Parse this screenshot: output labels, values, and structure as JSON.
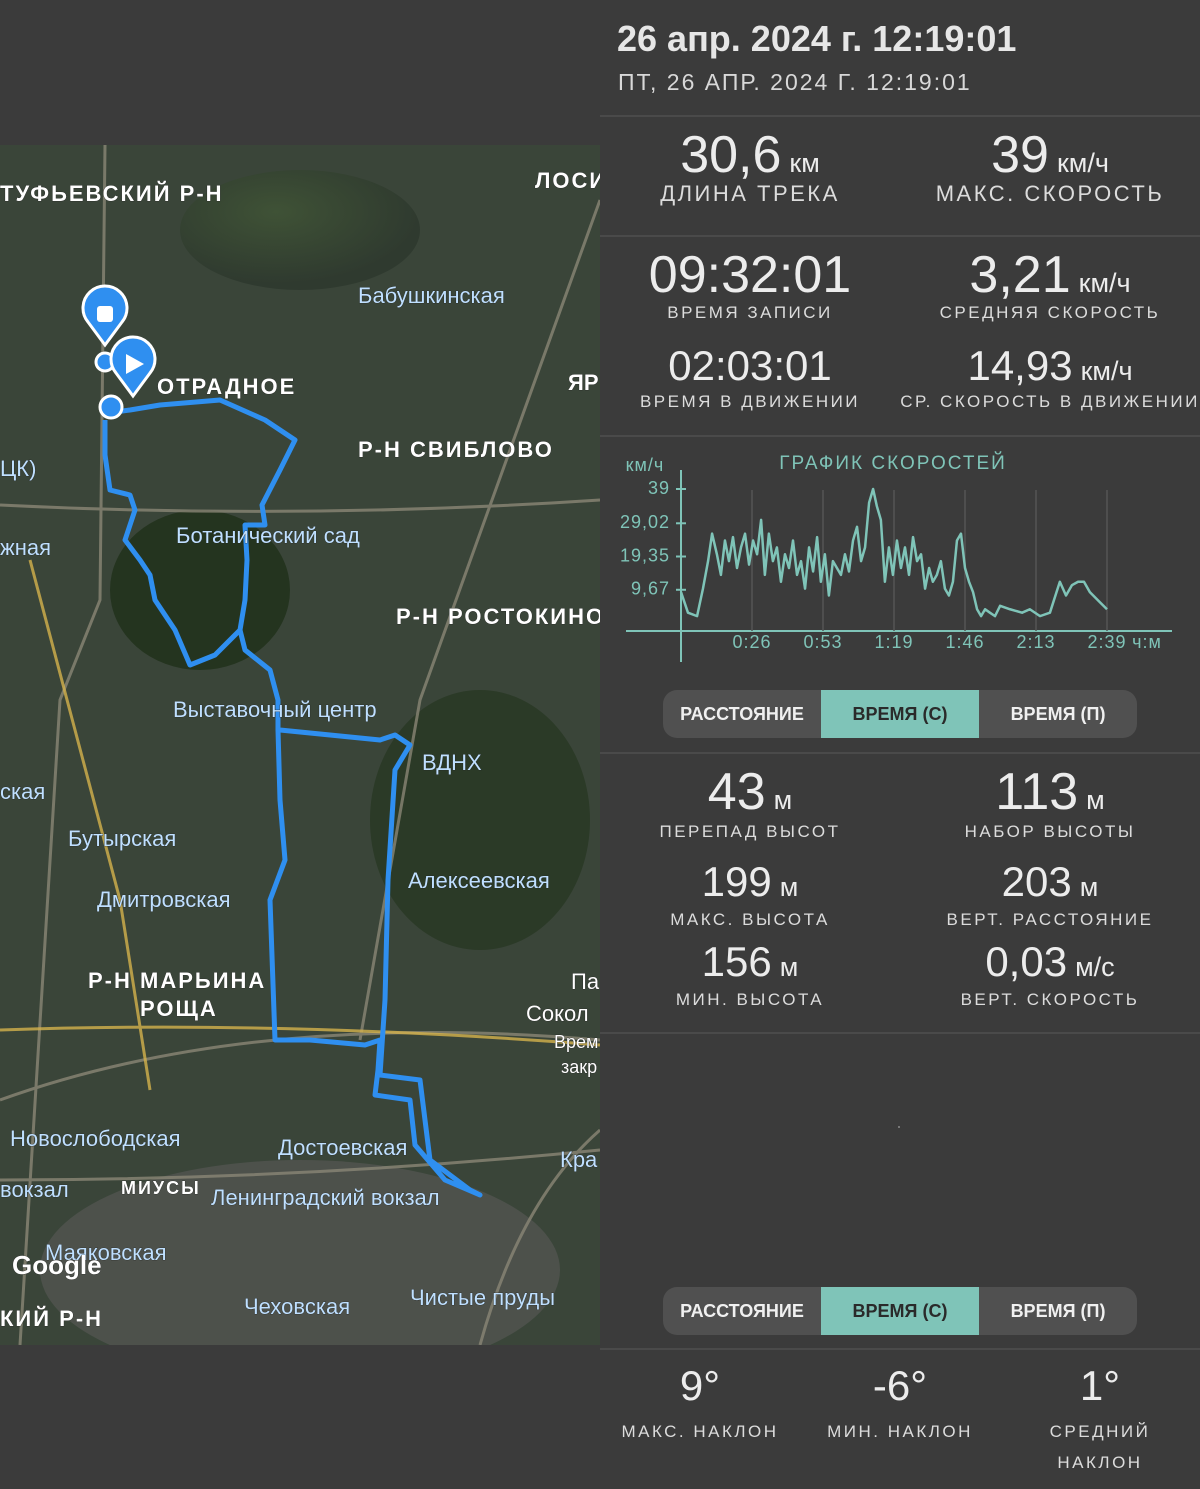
{
  "header": {
    "title": "26 апр. 2024 г. 12:19:01",
    "subtitle": "ПТ, 26 АПР. 2024 Г. 12:19:01"
  },
  "track_stats": [
    {
      "value": "30,6",
      "unit": "км",
      "label": "ДЛИНА ТРЕКА"
    },
    {
      "value": "39",
      "unit": "км/ч",
      "label": "МАКС. СКОРОСТЬ"
    },
    {
      "value": "09:32:01",
      "label": "ВРЕМЯ ЗАПИСИ"
    },
    {
      "value": "3,21",
      "unit": "км/ч",
      "label": "СРЕДНЯЯ СКОРОСТЬ"
    },
    {
      "value": "02:03:01",
      "label": "ВРЕМЯ В ДВИЖЕНИИ"
    },
    {
      "value": "14,93",
      "unit": "км/ч",
      "label": "СР. СКОРОСТЬ В ДВИЖЕНИИ"
    }
  ],
  "chart_data": {
    "type": "line",
    "title": "ГРАФИК СКОРОСТЕЙ",
    "y_label": "км/ч",
    "x_label": "ч:м",
    "x": [
      0,
      2.6,
      6.0,
      8.2,
      10.1,
      11.6,
      13.4,
      14.9,
      16.4,
      17.9,
      19.4,
      20.9,
      22.4,
      23.9,
      25.4,
      26.9,
      28.4,
      29.9,
      31.3,
      32.8,
      34.3,
      35.8,
      37.3,
      38.8,
      40.3,
      41.8,
      43.3,
      44.8,
      46.3,
      47.8,
      49.3,
      50.8,
      52.2,
      53.7,
      55.2,
      56.7,
      58.2,
      59.7,
      61.2,
      62.7,
      64.2,
      65.7,
      67.2,
      68.7,
      70.2,
      71.7,
      73.1,
      74.6,
      76.1,
      77.6,
      79.1,
      80.6,
      82.1,
      83.6,
      85.1,
      86.6,
      88.1,
      89.6,
      91.1,
      92.6,
      94.0,
      95.5,
      97.0,
      98.5,
      100.0,
      101.5,
      103.0,
      104.5,
      106.0,
      107.5,
      109.0,
      110.5,
      112.0,
      113.5,
      115.3,
      117.2,
      119.1,
      122.8,
      127.3,
      130.2,
      134.0,
      137.7,
      141.4,
      143.7,
      145.9,
      148.2,
      150.4,
      152.6,
      156.4,
      159.0
    ],
    "series": [
      {
        "color": "#7fc4b8",
        "values": [
          9,
          3,
          2,
          10,
          18,
          26,
          20,
          14,
          24,
          18,
          25,
          16,
          22,
          26,
          17,
          24,
          20,
          30,
          14,
          26,
          18,
          22,
          12,
          20,
          16,
          24,
          14,
          18,
          10,
          22,
          15,
          25,
          12,
          20,
          8,
          18,
          16,
          14,
          20,
          15,
          24,
          28,
          18,
          22,
          35,
          39,
          34,
          30,
          12,
          22,
          14,
          24,
          16,
          22,
          14,
          25,
          18,
          20,
          10,
          16,
          12,
          14,
          18,
          10,
          8,
          12,
          24,
          26,
          16,
          12,
          9,
          4,
          2,
          4,
          3,
          2,
          5,
          4,
          3,
          4,
          2,
          3,
          12,
          8,
          11,
          12,
          12,
          9,
          6,
          4
        ]
      }
    ],
    "xlim": [
      0,
      159
    ],
    "xticks": [
      {
        "value": 26.5,
        "label": "0:26"
      },
      {
        "value": 53,
        "label": "0:53"
      },
      {
        "value": 79.5,
        "label": "1:19"
      },
      {
        "value": 106,
        "label": "1:46"
      },
      {
        "value": 132.5,
        "label": "2:13"
      },
      {
        "value": 159,
        "label": "2:39"
      }
    ],
    "ylim": [
      0,
      39
    ],
    "yticks": [
      {
        "value": 9.67,
        "label": "9,67"
      },
      {
        "value": 19.35,
        "label": "19,35"
      },
      {
        "value": 29.02,
        "label": "29,02"
      },
      39
    ],
    "grid": true
  },
  "tabs_top": {
    "options": [
      "РАССТОЯНИЕ",
      "ВРЕМЯ (С)",
      "ВРЕМЯ (П)"
    ],
    "selected": 1
  },
  "elevation_stats": [
    {
      "value": "43",
      "unit": "м",
      "label": "ПЕРЕПАД ВЫСОТ"
    },
    {
      "value": "113",
      "unit": "м",
      "label": "НАБОР ВЫСОТЫ"
    },
    {
      "value": "199",
      "unit": "м",
      "label": "МАКС. ВЫСОТА"
    },
    {
      "value": "203",
      "unit": "м",
      "label": "ВЕРТ. РАССТОЯНИЕ"
    },
    {
      "value": "156",
      "unit": "м",
      "label": "МИН. ВЫСОТА"
    },
    {
      "value": "0,03",
      "unit": "м/с",
      "label": "ВЕРТ. СКОРОСТЬ"
    }
  ],
  "tabs_bottom": {
    "options": [
      "РАССТОЯНИЕ",
      "ВРЕМЯ (С)",
      "ВРЕМЯ (П)"
    ],
    "selected": 1
  },
  "slope_stats": [
    {
      "value": "9°",
      "label": "МАКС. НАКЛОН"
    },
    {
      "value": "-6°",
      "label": "МИН. НАКЛОН"
    },
    {
      "value": "1°",
      "label": "СРЕДНИЙ НАКЛОН"
    }
  ],
  "map": {
    "labels": [
      "ТУФЬЕВСКИЙ Р-Н",
      "ЛОСИ",
      "Бабушкинская",
      "ОТРАДНОЕ",
      "ЯР",
      "Р-Н СВИБЛОВО",
      "ЦК)",
      "Ботанический сад",
      "жная",
      "Р-Н РОСТОКИНО",
      "Выставочный центр",
      "ВДНХ",
      "ская",
      "Бутырская",
      "Алексеевская",
      "Дмитровская",
      "Р-Н МАРЬИНА",
      "РОЩА",
      "Па",
      "Сокол",
      "Врем",
      "закр",
      "Новослободская",
      "Достоевская",
      "Кра",
      "вокзал",
      "МИУСЫ",
      "Ленинградский вокзал",
      "Маяковская",
      "КИЙ Р-Н",
      "Чеховская",
      "Чистые пруды"
    ],
    "logo": "Google"
  }
}
